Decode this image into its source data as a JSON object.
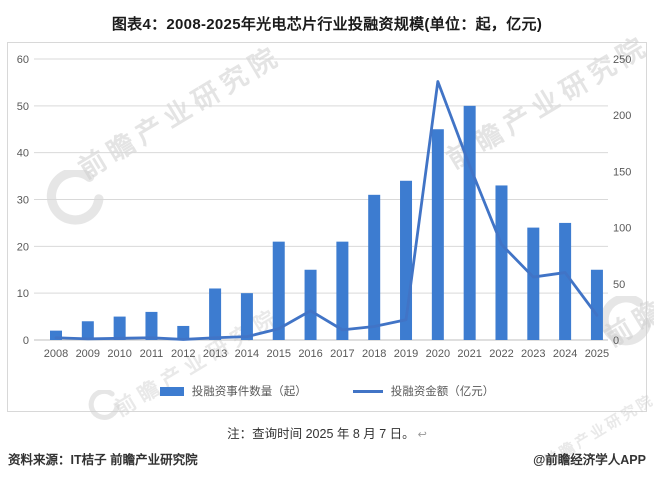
{
  "colors": {
    "bar": "#3D7CD0",
    "line": "#4174C6",
    "grid": "#D9D9D9",
    "zero_line": "#BFBFBF",
    "axis_text": "#595959",
    "border": "#D8D8D8",
    "watermark": "#CFCFCF",
    "title_text": "#1A1A1A",
    "body_text": "#333333"
  },
  "chart_data": {
    "type": "bar+line",
    "title": "图表4：2008-2025年光电芯片行业投融资规模(单位：起，亿元)",
    "categories": [
      "2008",
      "2009",
      "2010",
      "2011",
      "2012",
      "2013",
      "2014",
      "2015",
      "2016",
      "2017",
      "2018",
      "2019",
      "2020",
      "2021",
      "2022",
      "2023",
      "2024",
      "2025"
    ],
    "series": [
      {
        "name": "投融资事件数量（起）",
        "type": "bar",
        "axis": "left",
        "values": [
          2,
          4,
          5,
          6,
          3,
          11,
          10,
          21,
          15,
          21,
          31,
          34,
          45,
          50,
          33,
          24,
          25,
          15
        ]
      },
      {
        "name": "投融资金额（亿元）",
        "type": "line",
        "axis": "right",
        "values": [
          2,
          1,
          1.5,
          2,
          0.5,
          2,
          3,
          10,
          26,
          9,
          12,
          18,
          230,
          155,
          85,
          56,
          60,
          22
        ]
      }
    ],
    "left_axis": {
      "label": "",
      "ticks": [
        0,
        10,
        20,
        30,
        40,
        50,
        60
      ],
      "range": [
        0,
        60
      ]
    },
    "right_axis": {
      "label": "",
      "ticks": [
        0,
        50,
        100,
        150,
        200,
        250
      ],
      "range": [
        0,
        250
      ]
    },
    "grid": true,
    "legend_position": "bottom"
  },
  "note": {
    "text": "注：查询时间 2025 年 8 月 7 日。",
    "mark": "↩"
  },
  "footer": {
    "source": "资料来源：IT桔子 前瞻产业研究院",
    "credit": "@前瞻经济学人APP"
  },
  "watermark": {
    "text": "前瞻产业研究院"
  }
}
